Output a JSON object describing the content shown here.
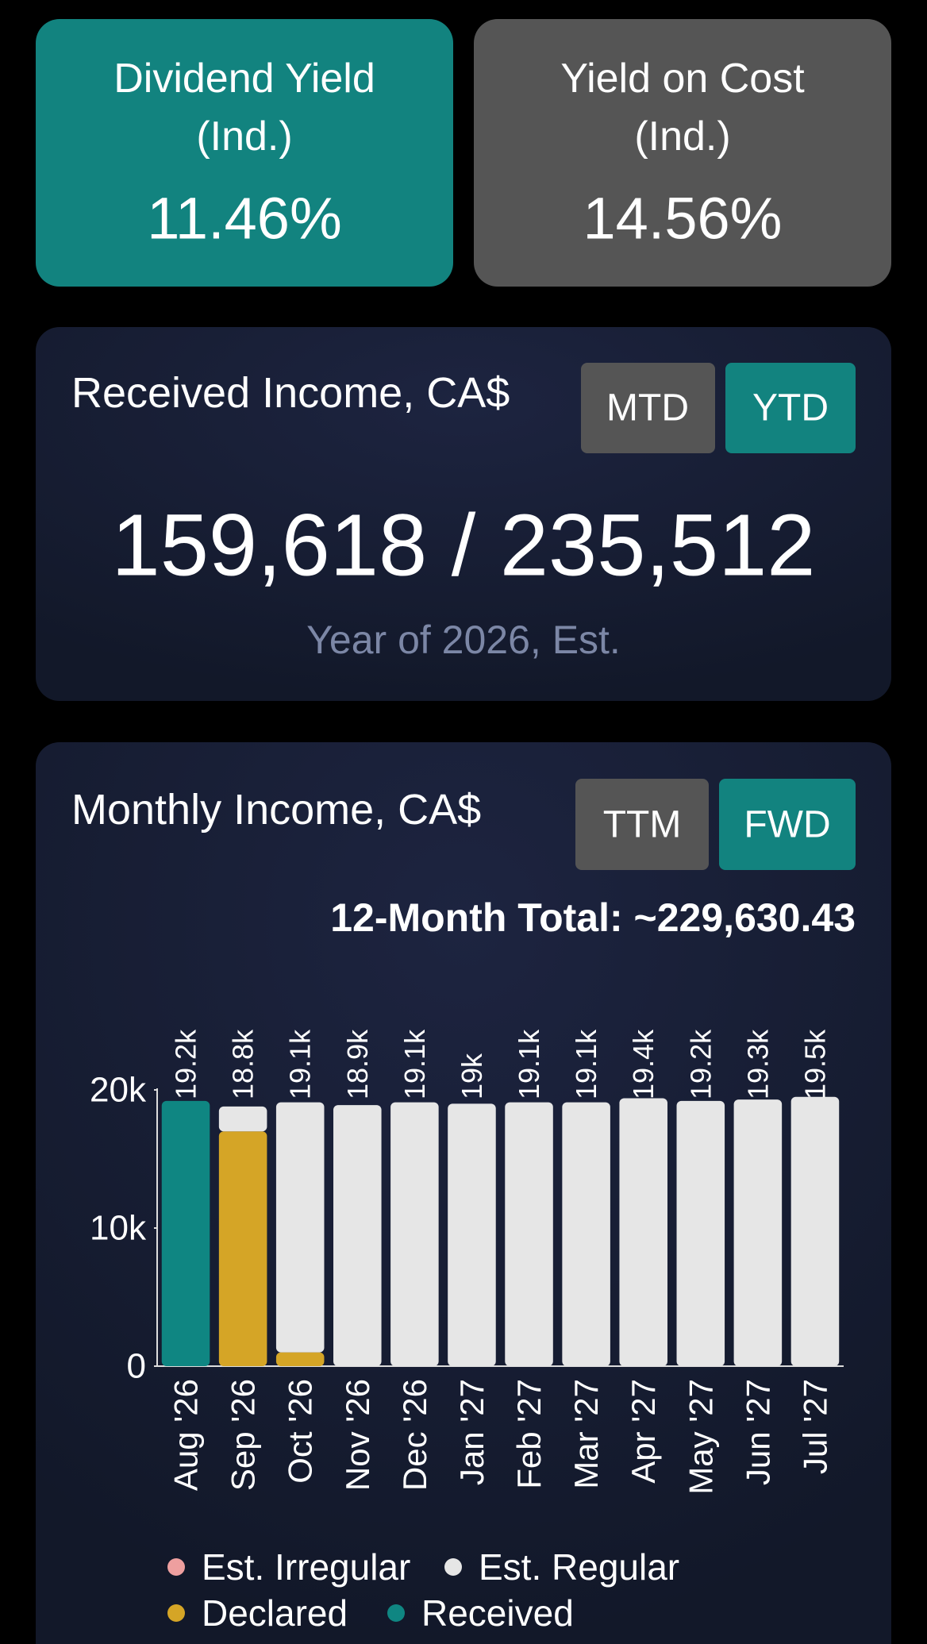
{
  "cards": [
    {
      "label": "Dividend Yield",
      "sublabel": "(Ind.)",
      "value": "11.46%"
    },
    {
      "label": "Yield on Cost",
      "sublabel": "(Ind.)",
      "value": "14.56%"
    }
  ],
  "received": {
    "title": "Received Income, CA$",
    "buttons": [
      "MTD",
      "YTD"
    ],
    "amount": "159,618 / 235,512",
    "caption": "Year of 2026, Est."
  },
  "monthly": {
    "title": "Monthly Income, CA$",
    "buttons": [
      "TTM",
      "FWD"
    ],
    "total": "12-Month Total: ~229,630.43"
  },
  "chart_data": {
    "type": "stacked-bar",
    "categories": [
      "Aug '26",
      "Sep '26",
      "Oct '26",
      "Nov '26",
      "Dec '26",
      "Jan '27",
      "Feb '27",
      "Mar '27",
      "Apr '27",
      "May '27",
      "Jun '27",
      "Jul '27"
    ],
    "series": [
      {
        "name": "Est. Irregular",
        "color": "#ee9f9f",
        "values": [
          0,
          0,
          0,
          0,
          0,
          0,
          0,
          0,
          0,
          0,
          0,
          0
        ]
      },
      {
        "name": "Est. Regular",
        "color": "#e6e6e6",
        "values": [
          0,
          1800,
          18100,
          18900,
          19100,
          19000,
          19100,
          19100,
          19400,
          19200,
          19300,
          19500
        ]
      },
      {
        "name": "Declared",
        "color": "#d5a526",
        "values": [
          0,
          17000,
          1000,
          0,
          0,
          0,
          0,
          0,
          0,
          0,
          0,
          0
        ]
      },
      {
        "name": "Received",
        "color": "#0f8682",
        "values": [
          19200,
          0,
          0,
          0,
          0,
          0,
          0,
          0,
          0,
          0,
          0,
          0
        ]
      }
    ],
    "totals": [
      19200,
      18800,
      19100,
      18900,
      19100,
      19000,
      19100,
      19100,
      19400,
      19200,
      19300,
      19500
    ],
    "total_labels": [
      "19.2k",
      "18.8k",
      "19.1k",
      "18.9k",
      "19.1k",
      "19k",
      "19.1k",
      "19.1k",
      "19.4k",
      "19.2k",
      "19.3k",
      "19.5k"
    ],
    "ylim": [
      0,
      20000
    ],
    "yticks": [
      0,
      {
        "value": 10000,
        "label": "10k"
      },
      {
        "value": 20000,
        "label": "20k"
      }
    ]
  }
}
